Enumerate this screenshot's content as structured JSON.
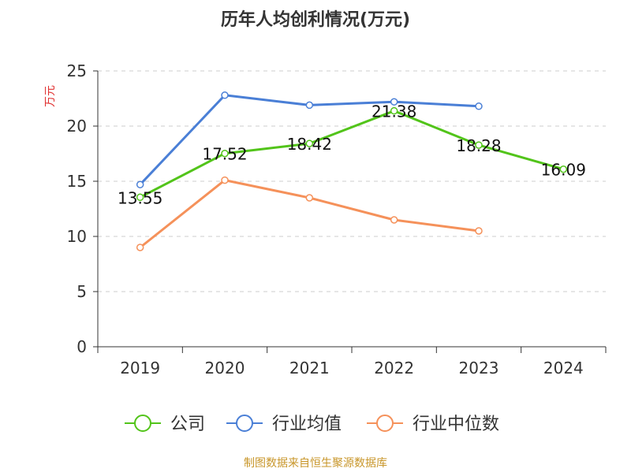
{
  "chart_data": {
    "type": "line",
    "title": "历年人均创利情况(万元)",
    "ylabel": "万元",
    "xlabel": "",
    "ylim": [
      0,
      25
    ],
    "yticks": [
      0,
      5,
      10,
      15,
      20,
      25
    ],
    "grid": true,
    "legend_position": "bottom",
    "categories": [
      "2019",
      "2020",
      "2021",
      "2022",
      "2023",
      "2024"
    ],
    "series": [
      {
        "name": "公司",
        "color": "#52c41a",
        "values": [
          13.55,
          17.52,
          18.42,
          21.38,
          18.28,
          16.09
        ],
        "labels": [
          "13.55",
          "17.52",
          "18.42",
          "21.38",
          "18.28",
          "16.09"
        ]
      },
      {
        "name": "行业均值",
        "color": "#4a7fd6",
        "values": [
          14.7,
          22.8,
          21.9,
          22.2,
          21.8,
          null
        ]
      },
      {
        "name": "行业中位数",
        "color": "#f5915a",
        "values": [
          9.0,
          15.1,
          13.5,
          11.5,
          10.5,
          null
        ]
      }
    ]
  },
  "source": "制图数据来自恒生聚源数据库"
}
